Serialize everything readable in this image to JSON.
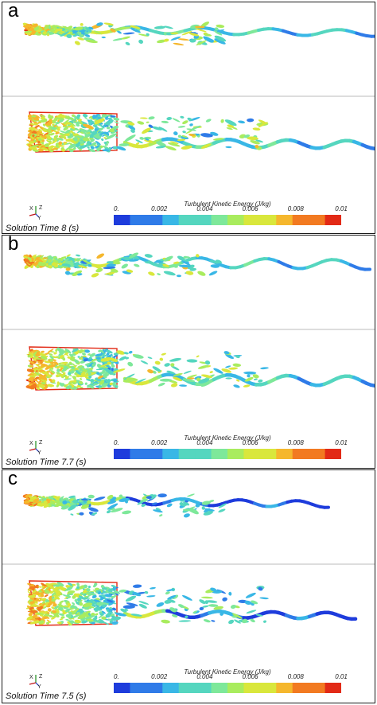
{
  "figure": {
    "panels": [
      {
        "letter": "a",
        "solution_time": "Solution Time 8 (s)",
        "colorbar_title": "Turbulent Kinetic Energy (J/kg)",
        "ticks": [
          "0.",
          "0.002",
          "0.004",
          "0.006",
          "0.008",
          "0.01"
        ]
      },
      {
        "letter": "b",
        "solution_time": "Solution Time 7.7 (s)",
        "colorbar_title": "Turbulent Kinetic Energy (J/kg)",
        "ticks": [
          "0.",
          "0.002",
          "0.004",
          "0.006",
          "0.008",
          "0.01"
        ]
      },
      {
        "letter": "c",
        "solution_time": "Solution Time 7.5 (s)",
        "colorbar_title": "Turbulent Kinetic Energy (J/kg)",
        "ticks": [
          "0.",
          "0.002",
          "0.004",
          "0.006",
          "0.008",
          "0.01"
        ]
      }
    ],
    "axis_labels": {
      "x": "X",
      "y": "Y",
      "z": "Z"
    },
    "colormap": [
      "#1e3cdc",
      "#2f7be8",
      "#39b7e6",
      "#55d6bf",
      "#7ee89a",
      "#a9ec5e",
      "#d9e73c",
      "#f5b72d",
      "#f27a21",
      "#e22a16"
    ]
  }
}
